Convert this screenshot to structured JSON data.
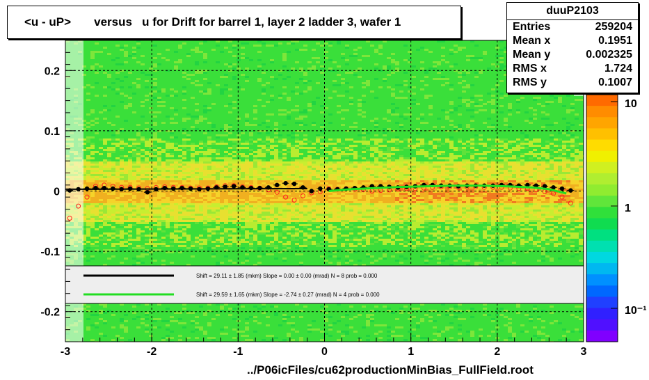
{
  "title": "<u - uP>       versus   u for Drift for barrel 1, layer 2 ladder 3, wafer 1",
  "stats": {
    "name": "duuP2103",
    "rows": [
      {
        "label": "Entries",
        "value": "259204"
      },
      {
        "label": "Mean x",
        "value": "0.1951"
      },
      {
        "label": "Mean y",
        "value": "0.002325"
      },
      {
        "label": "RMS x",
        "value": "1.724"
      },
      {
        "label": "RMS y",
        "value": "0.1007"
      }
    ]
  },
  "footer": "../P06icFiles/cu62productionMinBias_FullField.root",
  "colors": {
    "fit_black": "#000000",
    "fit_green": "#22dd22",
    "markers_open": "#ff2020",
    "heat_green": "#33dd33"
  },
  "chart_data": {
    "type": "heatmap",
    "xlim": [
      -3,
      3
    ],
    "ylim": [
      -0.25,
      0.25
    ],
    "x_ticks": [
      -3,
      -2,
      -1,
      0,
      1,
      2,
      3
    ],
    "x_tick_labels": [
      "-3",
      "-2",
      "-1",
      "0",
      "1",
      "2",
      "3"
    ],
    "y_ticks": [
      -0.2,
      -0.1,
      0,
      0.1,
      0.2
    ],
    "y_tick_labels": [
      "-0.2",
      "-0.1",
      "0",
      "0.1",
      "0.2"
    ],
    "grid": true,
    "colorbar": {
      "scale": "log",
      "tick_labels": [
        "10",
        "1",
        "10⁻¹"
      ]
    },
    "profile_black": {
      "x": [
        -2.95,
        -2.85,
        -2.75,
        -2.65,
        -2.55,
        -2.45,
        -2.35,
        -2.25,
        -2.15,
        -2.05,
        -1.95,
        -1.85,
        -1.75,
        -1.65,
        -1.55,
        -1.45,
        -1.35,
        -1.25,
        -1.15,
        -1.05,
        -0.95,
        -0.85,
        -0.75,
        -0.65,
        -0.55,
        -0.45,
        -0.35,
        -0.25,
        -0.15,
        -0.05,
        0.05,
        0.15,
        0.25,
        0.35,
        0.45,
        0.55,
        0.65,
        0.75,
        0.85,
        0.95,
        1.05,
        1.15,
        1.25,
        1.35,
        1.45,
        1.55,
        1.65,
        1.75,
        1.85,
        1.95,
        2.05,
        2.15,
        2.25,
        2.35,
        2.45,
        2.55,
        2.65,
        2.75,
        2.85
      ],
      "y": [
        0.001,
        0.003,
        0.004,
        0.005,
        0.005,
        0.004,
        0.003,
        0.004,
        0.003,
        -0.002,
        0.003,
        0.005,
        0.004,
        0.005,
        0.004,
        0.003,
        0.004,
        0.006,
        0.007,
        0.008,
        0.006,
        0.005,
        0.005,
        0.006,
        0.01,
        0.013,
        0.012,
        0.006,
        0.0,
        0.004,
        0.003,
        0.003,
        0.004,
        0.005,
        0.006,
        0.008,
        0.008,
        0.007,
        0.006,
        0.007,
        0.008,
        0.01,
        0.01,
        0.009,
        0.009,
        0.008,
        0.009,
        0.009,
        0.009,
        0.009,
        0.01,
        0.01,
        0.009,
        0.01,
        0.009,
        0.008,
        0.006,
        0.004,
        0.001
      ]
    },
    "profile_open": {
      "x": [
        -2.95,
        -2.85,
        -2.75,
        -2.65,
        -2.55,
        -2.45,
        -2.35,
        -2.25,
        -2.15,
        -2.05,
        -1.95,
        -1.85,
        -1.75,
        -1.65,
        -1.55,
        -1.45,
        -1.35,
        -1.25,
        -1.15,
        -1.05,
        -0.95,
        -0.85,
        -0.75,
        -0.65,
        -0.55,
        -0.45,
        -0.35,
        -0.25,
        -0.15,
        -0.05,
        0.05,
        0.15,
        0.25,
        0.35,
        0.45,
        0.55,
        0.65,
        0.75,
        0.85,
        0.95,
        1.05,
        1.15,
        1.25,
        1.35,
        1.45,
        1.55,
        1.65,
        1.75,
        1.85,
        1.95,
        2.05,
        2.15,
        2.25,
        2.35,
        2.45,
        2.55,
        2.65,
        2.75,
        2.85
      ],
      "y": [
        -0.045,
        -0.025,
        -0.01,
        0.008,
        0.01,
        0.008,
        0.006,
        0.006,
        0.005,
        0.004,
        0.006,
        0.007,
        0.006,
        0.006,
        0.005,
        0.005,
        0.005,
        0.007,
        0.009,
        0.009,
        0.007,
        0.006,
        0.005,
        0.002,
        -0.002,
        -0.01,
        -0.015,
        -0.008,
        -0.003,
        -0.001,
        0.004,
        0.003,
        0.004,
        0.003,
        0.002,
        0.0,
        0.001,
        0.002,
        0.003,
        0.004,
        0.004,
        0.005,
        0.006,
        0.007,
        0.007,
        0.006,
        0.007,
        0.007,
        0.006,
        0.006,
        0.006,
        0.005,
        0.004,
        0.004,
        0.002,
        -0.001,
        -0.004,
        -0.01,
        -0.02
      ]
    },
    "fit_black": {
      "x": [
        -3,
        -0.2
      ],
      "y": [
        0.003,
        0.004
      ]
    },
    "fit_green": {
      "x": [
        0.05,
        0.3,
        0.6,
        0.9,
        1.2,
        1.5,
        1.8,
        2.1,
        2.4,
        2.6,
        2.8
      ],
      "y": [
        0.0,
        0.003,
        0.005,
        0.007,
        0.008,
        0.009,
        0.009,
        0.008,
        0.006,
        0.003,
        -0.004
      ]
    },
    "legend": [
      {
        "series": "black",
        "text": "Shift =    29.11 ± 1.85 (mkm) Slope =     0.00 ± 0.00 (mrad)  N = 8 prob = 0.000"
      },
      {
        "series": "green",
        "text": "Shift =    29.59 ± 1.65 (mkm) Slope =    -2.74 ± 0.27 (mrad)  N = 4 prob = 0.000"
      }
    ]
  }
}
